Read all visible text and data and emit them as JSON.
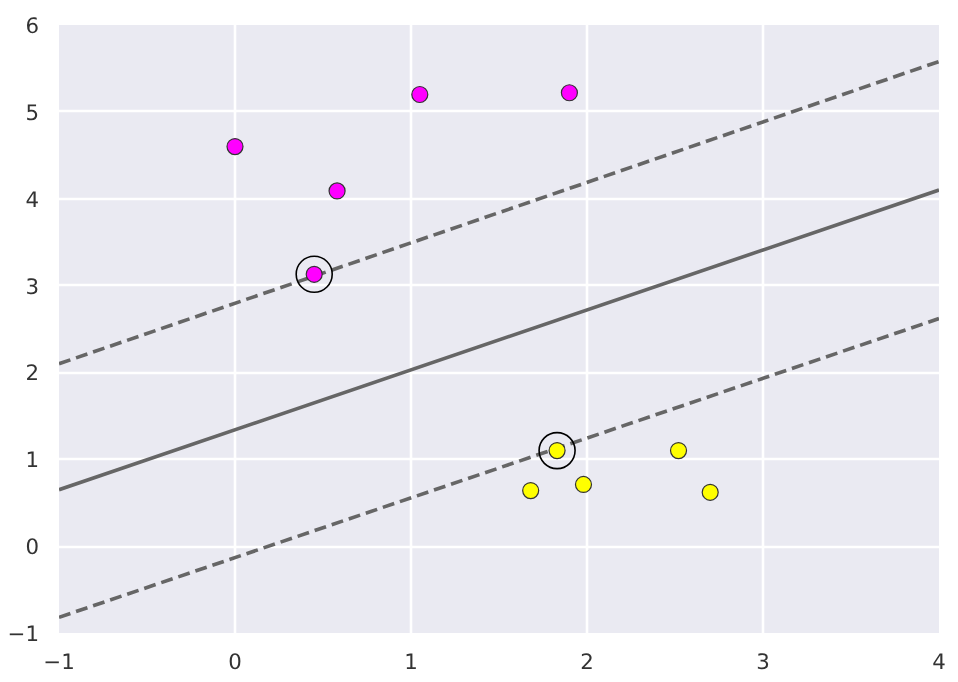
{
  "chart_data": {
    "type": "scatter",
    "xlim": [
      -1,
      4
    ],
    "ylim": [
      -1,
      6
    ],
    "xticks": [
      -1,
      0,
      1,
      2,
      3,
      4
    ],
    "yticks": [
      -1,
      0,
      1,
      2,
      3,
      4,
      5,
      6
    ],
    "grid": true,
    "series": [
      {
        "marker": "circle",
        "color": "#ff00ff",
        "x": [
          0.0,
          0.58,
          1.05,
          1.9,
          0.45
        ],
        "values": [
          4.6,
          4.09,
          5.2,
          5.22,
          3.13
        ]
      },
      {
        "marker": "circle",
        "color": "#ffff00",
        "x": [
          1.83,
          1.68,
          1.98,
          2.52,
          2.7
        ],
        "values": [
          1.1,
          0.64,
          0.71,
          1.1,
          0.62
        ]
      },
      {
        "type": "bubble",
        "marker": "circle",
        "color": "#000000",
        "x": [
          0.45,
          1.83
        ],
        "values": [
          3.13,
          1.1
        ],
        "sizes": [
          1,
          1
        ]
      },
      {
        "type": "line",
        "color": "#666666",
        "line_style": "solid",
        "x": [
          -1,
          4
        ],
        "values": [
          0.65,
          4.1
        ]
      },
      {
        "type": "line",
        "color": "#666666",
        "line_style": "dashed",
        "x": [
          -1,
          4
        ],
        "values": [
          2.1,
          5.58
        ]
      },
      {
        "type": "line",
        "color": "#666666",
        "line_style": "dashed",
        "x": [
          -1,
          4
        ],
        "values": [
          -0.82,
          2.62
        ]
      }
    ]
  }
}
